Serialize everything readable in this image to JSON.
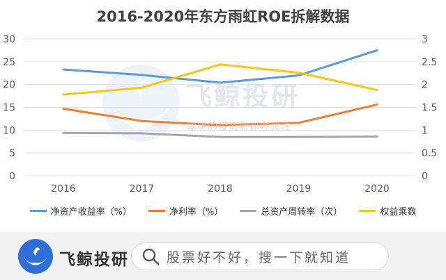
{
  "watermark": {
    "text": "飞鲸投研",
    "subtext": "聪明的投资者都在关注"
  },
  "bottom_bar": {
    "logo_text": "飞鲸投研",
    "search_placeholder": "股票好不好，搜一下就知道"
  },
  "colors": {
    "blue": "#5b9bd5",
    "orange": "#ed7d31",
    "gray": "#a5a5a5",
    "gold": "#f5c518"
  },
  "chart_data": {
    "type": "line",
    "title": "2016-2020年东方雨虹ROE拆解数据",
    "categories": [
      "2016",
      "2017",
      "2018",
      "2019",
      "2020"
    ],
    "y_left": {
      "range": [
        0,
        30
      ],
      "ticks": [
        "0",
        "5",
        "10",
        "15",
        "20",
        "25",
        "30"
      ]
    },
    "y_right": {
      "range": [
        0,
        3
      ],
      "ticks": [
        "0",
        "0.5",
        "1",
        "1.5",
        "2",
        "2.5",
        "3"
      ]
    },
    "series": [
      {
        "name": "净资产收益率（%）",
        "axis": "left",
        "color": "#5b9bd5",
        "values": [
          23.3,
          22.1,
          20.4,
          22.0,
          27.5
        ]
      },
      {
        "name": "净利率（%）",
        "axis": "left",
        "color": "#ed7d31",
        "values": [
          14.7,
          12.0,
          11.1,
          11.6,
          15.6
        ]
      },
      {
        "name": "总资产周转率（次）",
        "axis": "right",
        "color": "#a5a5a5",
        "values": [
          0.94,
          0.93,
          0.85,
          0.85,
          0.86
        ]
      },
      {
        "name": "权益乘数",
        "axis": "right",
        "color": "#f5c518",
        "values": [
          1.78,
          1.93,
          2.44,
          2.26,
          1.88
        ]
      }
    ],
    "legend_position": "bottom",
    "grid": true
  }
}
